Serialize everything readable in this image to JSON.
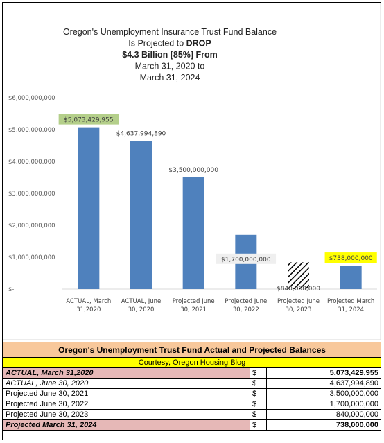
{
  "chart_data": {
    "type": "bar",
    "title_lines": [
      {
        "text": "Oregon's Unemployment Insurance Trust Fund Balance",
        "bold": false
      },
      {
        "text": "Is Projected to DROP",
        "bold": false
      },
      {
        "text": "$4.3 Billion [85%] From",
        "bold": true
      },
      {
        "text": "March 31, 2020 to",
        "bold": false
      },
      {
        "text": "March 31, 2024",
        "bold": false
      }
    ],
    "categories": [
      [
        "ACTUAL, March",
        "31,2020"
      ],
      [
        "ACTUAL, June",
        "30, 2020"
      ],
      [
        "Projected June",
        "30, 2021"
      ],
      [
        "Projected June",
        "30, 2022"
      ],
      [
        "Projected June",
        "30, 2023"
      ],
      [
        "Projected March",
        "31, 2024"
      ]
    ],
    "values": [
      5073429955,
      4637994890,
      3500000000,
      1700000000,
      840000000,
      738000000
    ],
    "data_labels": [
      "$5,073,429,955",
      "$4,637,994,890",
      "$3,500,000,000",
      "$1,700,000,000",
      "$840,000,000",
      "$738,000,000"
    ],
    "label_highlight": [
      "#b4cf8a",
      "",
      "",
      "#efefef",
      "",
      "#ffff00"
    ],
    "bar_fill": [
      "#4f81bd",
      "#4f81bd",
      "#4f81bd",
      "#4f81bd",
      "hatch",
      "#4f81bd"
    ],
    "ylim": [
      0,
      6000000000
    ],
    "y_ticks": [
      0,
      1000000000,
      2000000000,
      3000000000,
      4000000000,
      5000000000,
      6000000000
    ],
    "y_tick_labels": [
      "$-",
      "$1,000,000,000",
      "$2,000,000,000",
      "$3,000,000,000",
      "$4,000,000,000",
      "$5,000,000,000",
      "$6,000,000,000"
    ],
    "grid": false,
    "bar_color": "#4f81bd"
  },
  "table": {
    "header": "Oregon's Unemployment Trust Fund Actual and Projected Balances",
    "subheader": "Courtesy, Oregon Housing Blog",
    "rows": [
      {
        "label": "ACTUAL, March 31,2020",
        "currency": "$",
        "value": "5,073,429,955",
        "style": "highlight"
      },
      {
        "label": "ACTUAL, June 30, 2020",
        "currency": "$",
        "value": "4,637,994,890",
        "style": "italic"
      },
      {
        "label": "Projected June 30, 2021",
        "currency": "$",
        "value": "3,500,000,000",
        "style": "plain"
      },
      {
        "label": "Projected June 30, 2022",
        "currency": "$",
        "value": "1,700,000,000",
        "style": "plain"
      },
      {
        "label": "Projected June 30, 2023",
        "currency": "$",
        "value": "840,000,000",
        "style": "plain"
      },
      {
        "label": "Projected March 31, 2024",
        "currency": "$",
        "value": "738,000,000",
        "style": "highlight"
      }
    ]
  }
}
